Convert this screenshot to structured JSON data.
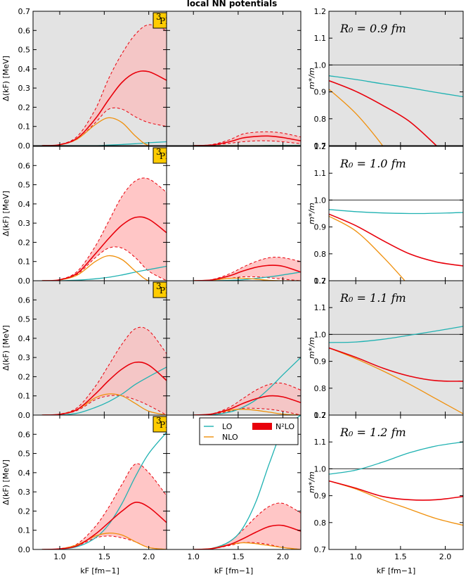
{
  "figure_title": "local NN potentials",
  "partial_wave_label": "3PF2",
  "partial_wave_sup": "3",
  "partial_wave_main": "PF",
  "partial_wave_sub": "2",
  "colors": {
    "LO": "#20b2b2",
    "NLO": "#f0900c",
    "N2LO": "#e8000b",
    "band": "#ffb3b3",
    "badge": "#ffcc00",
    "shade": "#e3e3e3"
  },
  "legend": [
    {
      "key": "LO",
      "label": "LO"
    },
    {
      "key": "NLO",
      "label": "NLO"
    },
    {
      "key": "N2LO",
      "label": "N²LO"
    }
  ],
  "axes": {
    "xlabel": "k_F [fm⁻¹]",
    "xlabel_text": "kF [fm−1]",
    "gap_ylabel": "Δ(kF) [MeV]",
    "mass_ylabel": "m*/m",
    "x_range": [
      0.7,
      2.2
    ],
    "gap_y_range": [
      0,
      0.7
    ],
    "mass_y_range": [
      0.7,
      1.2
    ],
    "x_ticks": [
      "1.0",
      "1.5",
      "2.0"
    ],
    "gap_y_ticks": [
      "0.0",
      "0.1",
      "0.2",
      "0.3",
      "0.4",
      "0.5",
      "0.6",
      "0.7"
    ],
    "mass_y_ticks": [
      "0.7",
      "0.8",
      "0.9",
      "1.0",
      "1.1",
      "1.2"
    ]
  },
  "chart_data": [
    {
      "row": 1,
      "R0_label": "R₀ = 0.9 fm",
      "shaded": true,
      "gap_left": {
        "type": "line",
        "title": "3PF2",
        "xlabel": "kF [fm−1]",
        "ylabel": "Δ(kF) [MeV]",
        "x": [
          0.8,
          1.0,
          1.2,
          1.4,
          1.55,
          1.7,
          1.85,
          2.0,
          2.2
        ],
        "series": [
          {
            "name": "LO",
            "values": [
              0.0,
              0.0,
              0.0,
              0.0,
              0.003,
              0.006,
              0.01,
              0.015,
              0.02
            ]
          },
          {
            "name": "NLO",
            "values": [
              0.0,
              0.004,
              0.035,
              0.11,
              0.145,
              0.12,
              0.05,
              0.0,
              0.0
            ]
          },
          {
            "name": "N2LO",
            "values": [
              0.0,
              0.005,
              0.04,
              0.14,
              0.24,
              0.33,
              0.38,
              0.385,
              0.34
            ]
          },
          {
            "name": "N2LO band upper",
            "values": [
              0.0,
              0.006,
              0.05,
              0.19,
              0.35,
              0.48,
              0.58,
              0.63,
              0.6
            ]
          },
          {
            "name": "N2LO band lower",
            "values": [
              0.0,
              0.004,
              0.035,
              0.12,
              0.19,
              0.19,
              0.15,
              0.12,
              0.1
            ]
          }
        ]
      },
      "gap_mid": {
        "type": "line",
        "x": [
          1.0,
          1.2,
          1.4,
          1.55,
          1.7,
          1.85,
          2.0,
          2.2
        ],
        "series": [
          {
            "name": "LO",
            "values": [
              0.0,
              0.0,
              0.0,
              0.0,
              0.0,
              0.001,
              0.001,
              0.002
            ]
          },
          {
            "name": "NLO",
            "values": [
              0.0,
              0.0,
              0.0,
              0.0,
              0.0,
              0.0,
              0.0,
              0.0
            ]
          },
          {
            "name": "N2LO",
            "values": [
              0.0,
              0.003,
              0.02,
              0.04,
              0.048,
              0.05,
              0.042,
              0.025
            ]
          },
          {
            "name": "N2LO band upper",
            "values": [
              0.0,
              0.005,
              0.03,
              0.06,
              0.07,
              0.072,
              0.065,
              0.045
            ]
          },
          {
            "name": "N2LO band lower",
            "values": [
              0.0,
              0.002,
              0.012,
              0.02,
              0.025,
              0.025,
              0.02,
              0.01
            ]
          }
        ]
      },
      "mass": {
        "type": "line",
        "ylabel": "m*/m",
        "x": [
          0.7,
          1.0,
          1.3,
          1.6,
          1.9,
          2.2
        ],
        "series": [
          {
            "name": "reference",
            "values": [
              1.0,
              1.0,
              1.0,
              1.0,
              1.0,
              1.0
            ]
          },
          {
            "name": "LO",
            "values": [
              0.96,
              0.946,
              0.93,
              0.915,
              0.898,
              0.882
            ]
          },
          {
            "name": "NLO",
            "values": [
              0.91,
              0.82,
              0.7,
              0.56,
              0.42,
              0.3
            ]
          },
          {
            "name": "N2LO",
            "values": [
              0.942,
              0.902,
              0.85,
              0.79,
              0.7,
              0.6
            ]
          }
        ]
      }
    },
    {
      "row": 2,
      "R0_label": "R₀ = 1.0 fm",
      "shaded": false,
      "gap_left": {
        "type": "line",
        "x": [
          0.8,
          1.0,
          1.2,
          1.4,
          1.55,
          1.7,
          1.85,
          2.0,
          2.2
        ],
        "series": [
          {
            "name": "LO",
            "values": [
              0.0,
              0.0,
              0.003,
              0.01,
              0.018,
              0.03,
              0.045,
              0.058,
              0.075
            ]
          },
          {
            "name": "NLO",
            "values": [
              0.0,
              0.004,
              0.03,
              0.1,
              0.13,
              0.11,
              0.05,
              0.0,
              0.0
            ]
          },
          {
            "name": "N2LO",
            "values": [
              0.0,
              0.005,
              0.04,
              0.14,
              0.22,
              0.29,
              0.33,
              0.32,
              0.25
            ]
          },
          {
            "name": "N2LO band upper",
            "values": [
              0.0,
              0.006,
              0.05,
              0.18,
              0.31,
              0.44,
              0.52,
              0.53,
              0.46
            ]
          },
          {
            "name": "N2LO band lower",
            "values": [
              0.0,
              0.004,
              0.035,
              0.12,
              0.17,
              0.17,
              0.12,
              0.05,
              0.0
            ]
          }
        ]
      },
      "gap_mid": {
        "type": "line",
        "x": [
          1.0,
          1.2,
          1.4,
          1.55,
          1.7,
          1.85,
          2.0,
          2.2
        ],
        "series": [
          {
            "name": "LO",
            "values": [
              0.0,
              0.0,
              0.002,
              0.005,
              0.012,
              0.02,
              0.03,
              0.045
            ]
          },
          {
            "name": "NLO",
            "values": [
              0.0,
              0.003,
              0.012,
              0.013,
              0.008,
              0.002,
              0.0,
              0.0
            ]
          },
          {
            "name": "N2LO",
            "values": [
              0.0,
              0.004,
              0.025,
              0.05,
              0.07,
              0.08,
              0.075,
              0.045
            ]
          },
          {
            "name": "N2LO band upper",
            "values": [
              0.0,
              0.005,
              0.035,
              0.07,
              0.1,
              0.12,
              0.12,
              0.1
            ]
          },
          {
            "name": "N2LO band lower",
            "values": [
              0.0,
              0.003,
              0.012,
              0.02,
              0.02,
              0.015,
              0.008,
              0.0
            ]
          }
        ]
      },
      "mass": {
        "type": "line",
        "ylabel": "m*/m",
        "x": [
          0.7,
          1.0,
          1.3,
          1.6,
          1.9,
          2.2
        ],
        "series": [
          {
            "name": "reference",
            "values": [
              1.0,
              1.0,
              1.0,
              1.0,
              1.0,
              1.0
            ]
          },
          {
            "name": "LO",
            "values": [
              0.965,
              0.957,
              0.952,
              0.95,
              0.951,
              0.954
            ]
          },
          {
            "name": "NLO",
            "values": [
              0.94,
              0.885,
              0.79,
              0.68,
              0.56,
              0.44
            ]
          },
          {
            "name": "N2LO",
            "values": [
              0.948,
              0.905,
              0.85,
              0.8,
              0.77,
              0.755
            ]
          }
        ]
      }
    },
    {
      "row": 3,
      "R0_label": "R₀ = 1.1 fm",
      "shaded": true,
      "gap_left": {
        "type": "line",
        "x": [
          0.8,
          1.0,
          1.2,
          1.4,
          1.55,
          1.7,
          1.85,
          2.0,
          2.2
        ],
        "series": [
          {
            "name": "LO",
            "values": [
              0.0,
              0.0,
              0.01,
              0.04,
              0.07,
              0.11,
              0.16,
              0.2,
              0.25
            ]
          },
          {
            "name": "NLO",
            "values": [
              0.0,
              0.004,
              0.03,
              0.09,
              0.11,
              0.1,
              0.06,
              0.02,
              0.0
            ]
          },
          {
            "name": "N2LO",
            "values": [
              0.0,
              0.004,
              0.03,
              0.11,
              0.18,
              0.24,
              0.275,
              0.26,
              0.18
            ]
          },
          {
            "name": "N2LO band upper",
            "values": [
              0.0,
              0.005,
              0.04,
              0.15,
              0.26,
              0.37,
              0.45,
              0.44,
              0.32
            ]
          },
          {
            "name": "N2LO band lower",
            "values": [
              0.0,
              0.003,
              0.025,
              0.08,
              0.1,
              0.1,
              0.08,
              0.05,
              0.0
            ]
          }
        ]
      },
      "gap_mid": {
        "type": "line",
        "x": [
          1.0,
          1.2,
          1.4,
          1.55,
          1.7,
          1.85,
          2.0,
          2.2
        ],
        "series": [
          {
            "name": "LO",
            "values": [
              0.0,
              0.002,
              0.015,
              0.04,
              0.08,
              0.14,
              0.21,
              0.3
            ]
          },
          {
            "name": "NLO",
            "values": [
              0.0,
              0.005,
              0.025,
              0.03,
              0.025,
              0.015,
              0.005,
              0.0
            ]
          },
          {
            "name": "N2LO",
            "values": [
              0.0,
              0.005,
              0.03,
              0.06,
              0.085,
              0.1,
              0.095,
              0.065
            ]
          },
          {
            "name": "N2LO band upper",
            "values": [
              0.0,
              0.006,
              0.04,
              0.085,
              0.13,
              0.16,
              0.165,
              0.13
            ]
          },
          {
            "name": "N2LO band lower",
            "values": [
              0.0,
              0.004,
              0.02,
              0.035,
              0.035,
              0.03,
              0.02,
              0.0
            ]
          }
        ]
      },
      "mass": {
        "type": "line",
        "ylabel": "m*/m",
        "x": [
          0.7,
          1.0,
          1.3,
          1.6,
          1.9,
          2.2
        ],
        "series": [
          {
            "name": "reference",
            "values": [
              1.0,
              1.0,
              1.0,
              1.0,
              1.0,
              1.0
            ]
          },
          {
            "name": "LO",
            "values": [
              0.97,
              0.972,
              0.982,
              0.997,
              1.013,
              1.03
            ]
          },
          {
            "name": "NLO",
            "values": [
              0.95,
              0.91,
              0.865,
              0.815,
              0.76,
              0.705
            ]
          },
          {
            "name": "N2LO",
            "values": [
              0.95,
              0.915,
              0.875,
              0.845,
              0.828,
              0.826
            ]
          }
        ]
      }
    },
    {
      "row": 4,
      "R0_label": "R₀ = 1.2 fm",
      "shaded": false,
      "gap_left": {
        "type": "line",
        "x": [
          0.8,
          1.0,
          1.2,
          1.4,
          1.55,
          1.7,
          1.85,
          2.0,
          2.2
        ],
        "series": [
          {
            "name": "LO",
            "values": [
              0.0,
              0.002,
              0.015,
              0.06,
              0.13,
              0.24,
              0.38,
              0.5,
              0.61
            ]
          },
          {
            "name": "NLO",
            "values": [
              0.0,
              0.003,
              0.025,
              0.07,
              0.085,
              0.075,
              0.04,
              0.01,
              0.0
            ]
          },
          {
            "name": "N2LO",
            "values": [
              0.0,
              0.003,
              0.02,
              0.08,
              0.14,
              0.2,
              0.245,
              0.22,
              0.14
            ]
          },
          {
            "name": "N2LO band upper",
            "values": [
              0.0,
              0.004,
              0.03,
              0.12,
              0.22,
              0.34,
              0.445,
              0.4,
              0.28
            ]
          },
          {
            "name": "N2LO band lower",
            "values": [
              0.0,
              0.003,
              0.02,
              0.06,
              0.07,
              0.06,
              0.04,
              0.01,
              0.0
            ]
          }
        ]
      },
      "gap_mid": {
        "type": "line",
        "x": [
          1.0,
          1.2,
          1.4,
          1.55,
          1.7,
          1.85,
          2.0,
          2.2
        ],
        "series": [
          {
            "name": "LO",
            "values": [
              0.0,
              0.005,
              0.04,
              0.11,
              0.25,
              0.45,
              0.62,
              0.7
            ]
          },
          {
            "name": "NLO",
            "values": [
              0.0,
              0.005,
              0.025,
              0.035,
              0.03,
              0.02,
              0.01,
              0.0
            ]
          },
          {
            "name": "N2LO",
            "values": [
              0.0,
              0.004,
              0.025,
              0.055,
              0.09,
              0.12,
              0.125,
              0.095
            ]
          },
          {
            "name": "N2LO band upper",
            "values": [
              0.0,
              0.005,
              0.04,
              0.1,
              0.17,
              0.225,
              0.24,
              0.19
            ]
          },
          {
            "name": "N2LO band lower",
            "values": [
              0.0,
              0.004,
              0.02,
              0.035,
              0.035,
              0.025,
              0.01,
              0.0
            ]
          }
        ]
      },
      "mass": {
        "type": "line",
        "ylabel": "m*/m",
        "x": [
          0.7,
          1.0,
          1.3,
          1.6,
          1.9,
          2.2
        ],
        "series": [
          {
            "name": "reference",
            "values": [
              1.0,
              1.0,
              1.0,
              1.0,
              1.0,
              1.0
            ]
          },
          {
            "name": "LO",
            "values": [
              0.98,
              0.995,
              1.025,
              1.06,
              1.085,
              1.1
            ]
          },
          {
            "name": "NLO",
            "values": [
              0.955,
              0.925,
              0.885,
              0.85,
              0.815,
              0.79
            ]
          },
          {
            "name": "N2LO",
            "values": [
              0.955,
              0.928,
              0.897,
              0.885,
              0.885,
              0.897
            ]
          }
        ]
      }
    }
  ]
}
